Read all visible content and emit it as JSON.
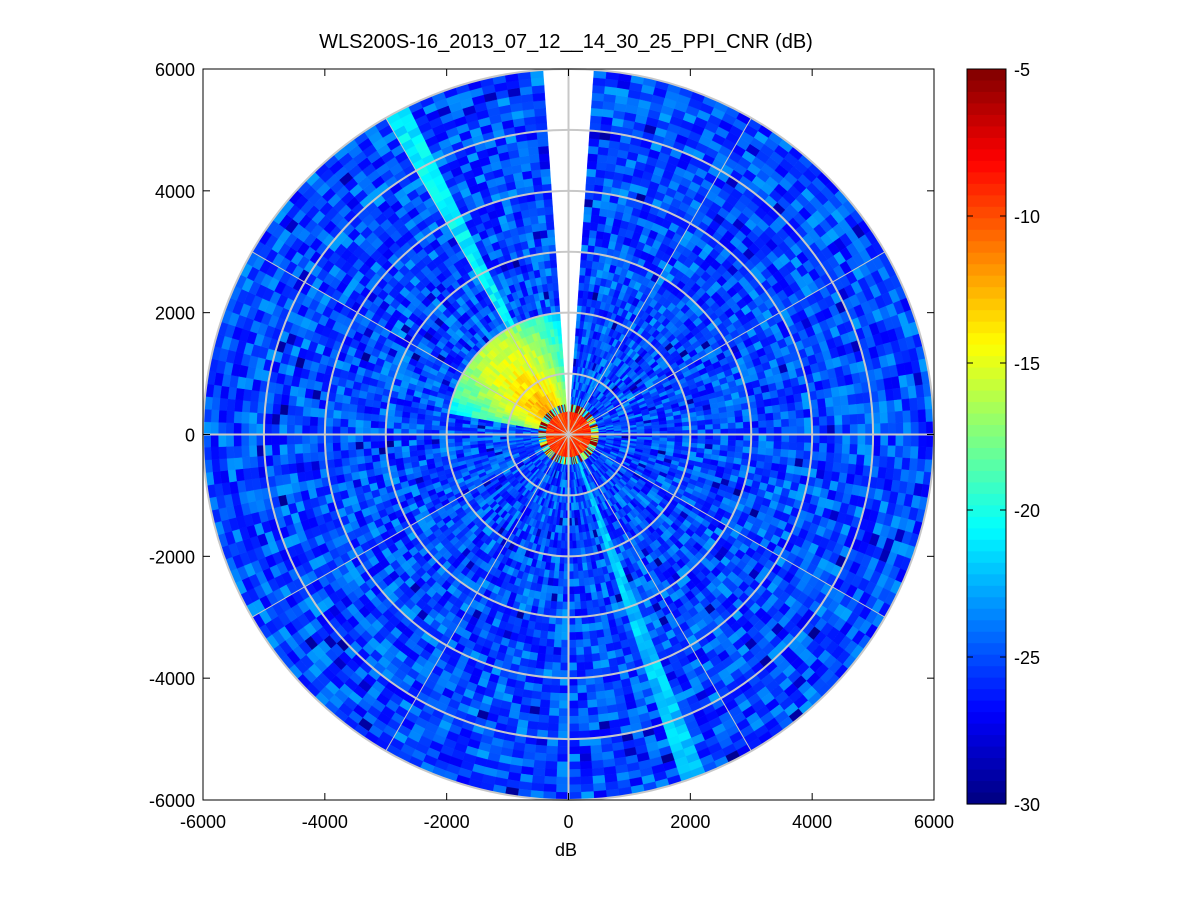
{
  "chart_data": {
    "type": "heatmap",
    "subtype": "polar-ppi",
    "title": "WLS200S-16_2013_07_12__14_30_25_PPI_CNR (dB)",
    "xlabel": "dB",
    "ylabel": "",
    "xlim": [
      -6000,
      6000
    ],
    "ylim": [
      -6000,
      6000
    ],
    "x_ticks": [
      -6000,
      -4000,
      -2000,
      0,
      2000,
      4000,
      6000
    ],
    "y_ticks": [
      6000,
      4000,
      2000,
      0,
      -2000,
      -4000,
      -6000
    ],
    "colorbar": {
      "colormap": "jet",
      "range": [
        -30,
        -5
      ],
      "ticks": [
        -5,
        -10,
        -15,
        -20,
        -25,
        -30
      ]
    },
    "polar_grid": {
      "ring_radii": [
        1000,
        2000,
        3000,
        4000,
        5000,
        6000
      ],
      "spoke_angles_deg": [
        0,
        30,
        60,
        90,
        120,
        150,
        180,
        210,
        240,
        270,
        300,
        330
      ]
    },
    "max_range": 6000,
    "gap_sector_deg": [
      -4,
      4
    ],
    "background_level_db": -25,
    "features": [
      {
        "label": "near-field ring",
        "range": [
          0,
          450
        ],
        "level_db": -8
      },
      {
        "label": "high-CNR sector",
        "azimuth_deg": [
          -80,
          -5
        ],
        "range": [
          0,
          2000
        ],
        "level_db_max": -10
      },
      {
        "label": "streak",
        "azimuth_deg": 160,
        "level_db": -22
      },
      {
        "label": "streak",
        "azimuth_deg": -28,
        "level_db": -21
      }
    ]
  }
}
